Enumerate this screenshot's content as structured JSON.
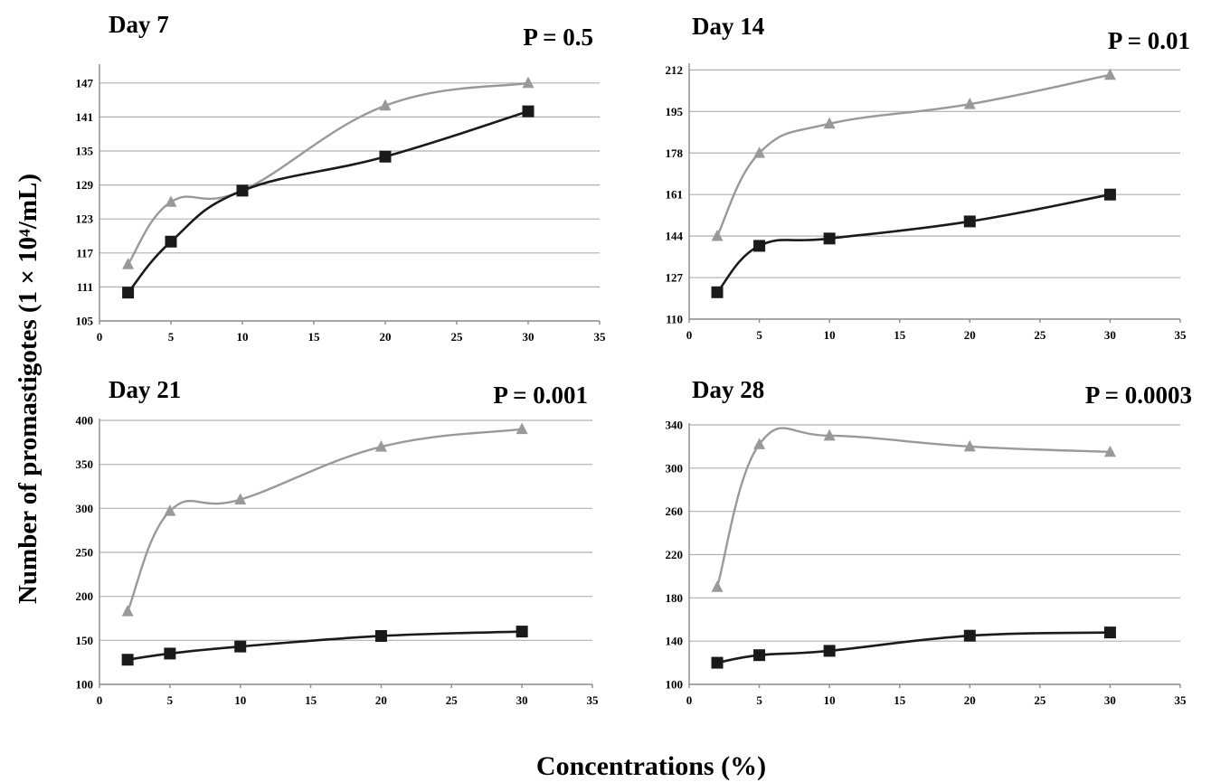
{
  "figure": {
    "ylabel": "Number of promastigotes (1 × 10⁴/mL)",
    "xlabel": "Concentrations (%)"
  },
  "series_colors": {
    "triangle": "#999999",
    "square": "#1a1a1a"
  },
  "chart_data": [
    {
      "type": "line",
      "title": "Day 7",
      "annotation": "P = 0.5",
      "xlim": [
        0,
        35
      ],
      "ylim": [
        105,
        150
      ],
      "xticks": [
        0,
        5,
        10,
        15,
        20,
        25,
        30,
        35
      ],
      "yticks": [
        105,
        111,
        117,
        123,
        129,
        135,
        141,
        147
      ],
      "grid": true,
      "x": [
        2,
        5,
        10,
        20,
        30
      ],
      "series": [
        {
          "marker": "triangle",
          "values": [
            115,
            126,
            128,
            143,
            147
          ]
        },
        {
          "marker": "square",
          "values": [
            110,
            119,
            128,
            134,
            142
          ]
        }
      ]
    },
    {
      "type": "line",
      "title": "Day 14",
      "annotation": "P = 0.01",
      "xlim": [
        0,
        35
      ],
      "ylim": [
        110,
        214
      ],
      "xticks": [
        0,
        5,
        10,
        15,
        20,
        25,
        30,
        35
      ],
      "yticks": [
        110,
        127,
        144,
        161,
        178,
        195,
        212
      ],
      "grid": true,
      "x": [
        2,
        5,
        10,
        20,
        30
      ],
      "series": [
        {
          "marker": "triangle",
          "values": [
            144,
            178,
            190,
            198,
            210
          ]
        },
        {
          "marker": "square",
          "values": [
            121,
            140,
            143,
            150,
            161
          ]
        }
      ]
    },
    {
      "type": "line",
      "title": "Day 21",
      "annotation": "P = 0.001",
      "xlim": [
        0,
        35
      ],
      "ylim": [
        100,
        400
      ],
      "xticks": [
        0,
        5,
        10,
        15,
        20,
        25,
        30,
        35
      ],
      "yticks": [
        100,
        150,
        200,
        250,
        300,
        350,
        400
      ],
      "grid": true,
      "x": [
        2,
        5,
        10,
        20,
        30
      ],
      "series": [
        {
          "marker": "triangle",
          "values": [
            183,
            297,
            310,
            370,
            390
          ]
        },
        {
          "marker": "square",
          "values": [
            128,
            135,
            143,
            155,
            160
          ]
        }
      ]
    },
    {
      "type": "line",
      "title": "Day 28",
      "annotation": "P = 0.0003",
      "xlim": [
        0,
        35
      ],
      "ylim": [
        100,
        340
      ],
      "xticks": [
        0,
        5,
        10,
        15,
        20,
        25,
        30,
        35
      ],
      "yticks": [
        100,
        140,
        180,
        220,
        260,
        300,
        340
      ],
      "grid": true,
      "x": [
        2,
        5,
        10,
        20,
        30
      ],
      "series": [
        {
          "marker": "triangle",
          "values": [
            190,
            322,
            330,
            320,
            315
          ]
        },
        {
          "marker": "square",
          "values": [
            120,
            127,
            131,
            145,
            148
          ]
        }
      ]
    }
  ]
}
